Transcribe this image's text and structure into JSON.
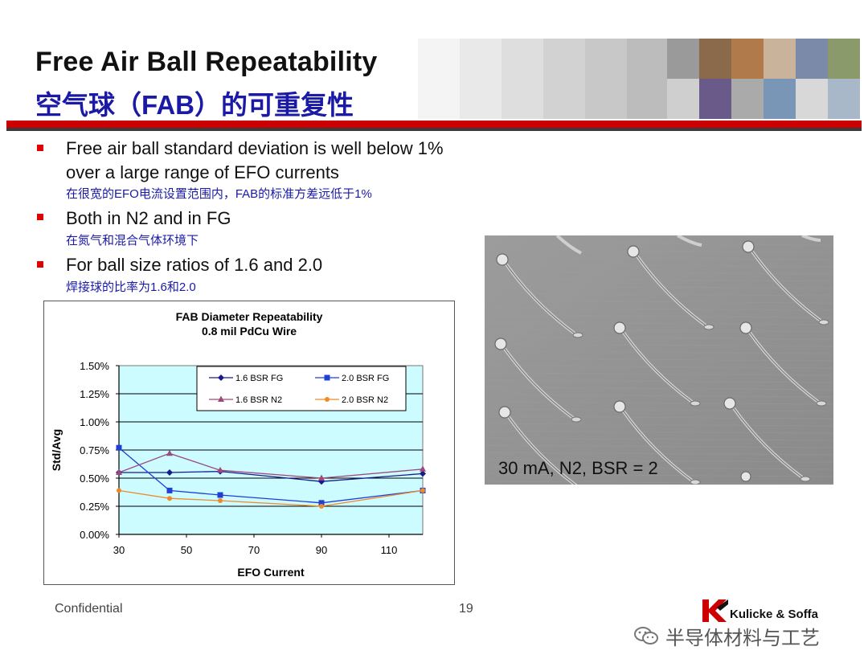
{
  "slide": {
    "title_en": "Free Air Ball Repeatability",
    "title_cn": "空气球（FAB）的可重复性",
    "bullets": [
      {
        "text_line1": "Free air ball standard deviation is well below 1%",
        "text_line2": "over a large range of EFO currents",
        "sub": "在很宽的EFO电流设置范围内，FAB的标准方差远低于1%"
      },
      {
        "text_line1": "Both in N2 and in FG",
        "sub": "在氮气和混合气体环境下"
      },
      {
        "text_line1": "For ball size ratios of 1.6 and 2.0",
        "sub": "焊接球的比率为1.6和2.0"
      }
    ],
    "image_caption": "30 mA, N2, BSR = 2",
    "footer": {
      "confidential": "Confidential",
      "page_number": "19"
    },
    "logo_text": "Kulicke & Soffa",
    "watermark": "半导体材料与工艺",
    "colors": {
      "title_cn": "#1a1aa6",
      "accent_red": "#cc0000",
      "plot_bg": "#ccfcff"
    }
  },
  "chart_data": {
    "type": "line",
    "title": "FAB Diameter Repeatability",
    "subtitle": "0.8 mil PdCu Wire",
    "xlabel": "EFO Current",
    "ylabel": "Std/Avg",
    "x": [
      30,
      45,
      60,
      90,
      120
    ],
    "xlim": [
      30,
      120
    ],
    "xticks": [
      30,
      50,
      70,
      90,
      110
    ],
    "ylim": [
      0,
      1.5
    ],
    "yticks": [
      0,
      0.25,
      0.5,
      0.75,
      1.0,
      1.25,
      1.5
    ],
    "ytick_labels": [
      "0.00%",
      "0.25%",
      "0.50%",
      "0.75%",
      "1.00%",
      "1.25%",
      "1.50%"
    ],
    "grid": "horizontal",
    "legend_position": "top-right",
    "series": [
      {
        "name": "1.6 BSR FG",
        "color": "#1a1a8c",
        "marker": "diamond",
        "values": [
          0.55,
          0.55,
          0.56,
          0.47,
          0.54
        ]
      },
      {
        "name": "2.0 BSR FG",
        "color": "#1f3fd6",
        "marker": "square",
        "values": [
          0.77,
          0.39,
          0.35,
          0.28,
          0.39
        ]
      },
      {
        "name": "1.6 BSR N2",
        "color": "#9c4a7a",
        "marker": "triangle",
        "values": [
          0.55,
          0.72,
          0.57,
          0.5,
          0.58
        ]
      },
      {
        "name": "2.0 BSR N2",
        "color": "#f08a28",
        "marker": "circle",
        "values": [
          0.39,
          0.32,
          0.3,
          0.25,
          0.39
        ]
      }
    ]
  }
}
